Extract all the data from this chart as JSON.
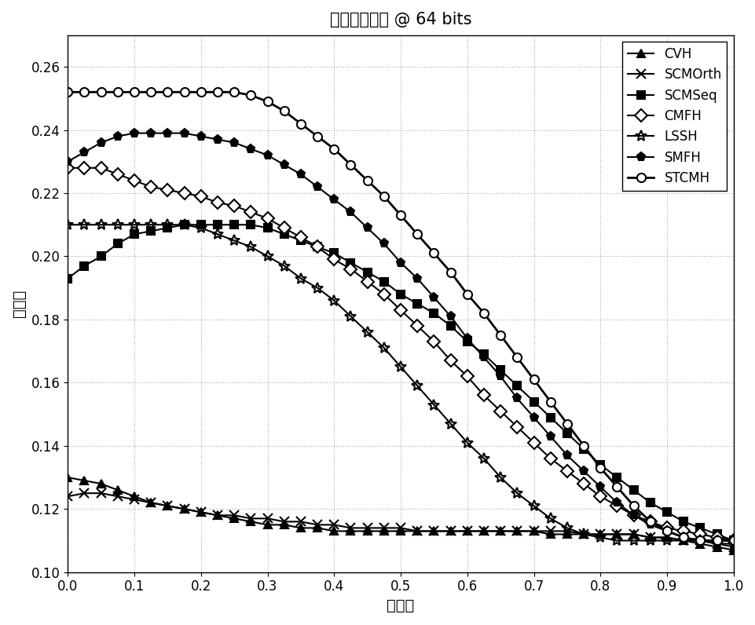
{
  "title": "图像检索文本 @ 64 bits",
  "xlabel": "召回率",
  "ylabel": "准确率",
  "xlim": [
    0,
    1
  ],
  "ylim": [
    0.1,
    0.27
  ],
  "yticks": [
    0.1,
    0.12,
    0.14,
    0.16,
    0.18,
    0.2,
    0.22,
    0.24,
    0.26
  ],
  "xticks": [
    0,
    0.1,
    0.2,
    0.3,
    0.4,
    0.5,
    0.6,
    0.7,
    0.8,
    0.9,
    1.0
  ],
  "series": [
    {
      "label": "CVH",
      "marker": "^",
      "marker_face": "black",
      "marker_edge": "black",
      "color": "#000000",
      "linewidth": 1.5,
      "markersize": 7,
      "x": [
        0.0,
        0.025,
        0.05,
        0.075,
        0.1,
        0.125,
        0.15,
        0.175,
        0.2,
        0.225,
        0.25,
        0.275,
        0.3,
        0.325,
        0.35,
        0.375,
        0.4,
        0.425,
        0.45,
        0.475,
        0.5,
        0.525,
        0.55,
        0.575,
        0.6,
        0.625,
        0.65,
        0.675,
        0.7,
        0.725,
        0.75,
        0.775,
        0.8,
        0.825,
        0.85,
        0.875,
        0.9,
        0.925,
        0.95,
        0.975,
        1.0
      ],
      "y": [
        0.13,
        0.129,
        0.128,
        0.126,
        0.124,
        0.122,
        0.121,
        0.12,
        0.119,
        0.118,
        0.117,
        0.116,
        0.115,
        0.115,
        0.114,
        0.114,
        0.113,
        0.113,
        0.113,
        0.113,
        0.113,
        0.113,
        0.113,
        0.113,
        0.113,
        0.113,
        0.113,
        0.113,
        0.113,
        0.112,
        0.112,
        0.112,
        0.112,
        0.112,
        0.112,
        0.111,
        0.111,
        0.11,
        0.109,
        0.108,
        0.107
      ]
    },
    {
      "label": "SCMOrth",
      "marker": "x",
      "marker_face": "black",
      "marker_edge": "black",
      "color": "#000000",
      "linewidth": 1.5,
      "markersize": 8,
      "x": [
        0.0,
        0.025,
        0.05,
        0.075,
        0.1,
        0.125,
        0.15,
        0.175,
        0.2,
        0.225,
        0.25,
        0.275,
        0.3,
        0.325,
        0.35,
        0.375,
        0.4,
        0.425,
        0.45,
        0.475,
        0.5,
        0.525,
        0.55,
        0.575,
        0.6,
        0.625,
        0.65,
        0.675,
        0.7,
        0.725,
        0.75,
        0.775,
        0.8,
        0.825,
        0.85,
        0.875,
        0.9,
        0.925,
        0.95,
        0.975,
        1.0
      ],
      "y": [
        0.124,
        0.125,
        0.125,
        0.124,
        0.123,
        0.122,
        0.121,
        0.12,
        0.119,
        0.118,
        0.118,
        0.117,
        0.117,
        0.116,
        0.116,
        0.115,
        0.115,
        0.114,
        0.114,
        0.114,
        0.114,
        0.113,
        0.113,
        0.113,
        0.113,
        0.113,
        0.113,
        0.113,
        0.113,
        0.113,
        0.113,
        0.112,
        0.112,
        0.112,
        0.112,
        0.111,
        0.111,
        0.11,
        0.11,
        0.109,
        0.108
      ]
    },
    {
      "label": "SCMSeq",
      "marker": "s",
      "marker_face": "black",
      "marker_edge": "black",
      "color": "#000000",
      "linewidth": 1.5,
      "markersize": 7,
      "x": [
        0.0,
        0.025,
        0.05,
        0.075,
        0.1,
        0.125,
        0.15,
        0.175,
        0.2,
        0.225,
        0.25,
        0.275,
        0.3,
        0.325,
        0.35,
        0.375,
        0.4,
        0.425,
        0.45,
        0.475,
        0.5,
        0.525,
        0.55,
        0.575,
        0.6,
        0.625,
        0.65,
        0.675,
        0.7,
        0.725,
        0.75,
        0.775,
        0.8,
        0.825,
        0.85,
        0.875,
        0.9,
        0.925,
        0.95,
        0.975,
        1.0
      ],
      "y": [
        0.193,
        0.197,
        0.2,
        0.204,
        0.207,
        0.208,
        0.209,
        0.21,
        0.21,
        0.21,
        0.21,
        0.21,
        0.209,
        0.207,
        0.205,
        0.203,
        0.201,
        0.198,
        0.195,
        0.192,
        0.188,
        0.185,
        0.182,
        0.178,
        0.173,
        0.169,
        0.164,
        0.159,
        0.154,
        0.149,
        0.144,
        0.139,
        0.134,
        0.13,
        0.126,
        0.122,
        0.119,
        0.116,
        0.114,
        0.112,
        0.11
      ]
    },
    {
      "label": "CMFH",
      "marker": "D",
      "marker_face": "white",
      "marker_edge": "black",
      "color": "#000000",
      "linewidth": 1.5,
      "markersize": 8,
      "x": [
        0.0,
        0.025,
        0.05,
        0.075,
        0.1,
        0.125,
        0.15,
        0.175,
        0.2,
        0.225,
        0.25,
        0.275,
        0.3,
        0.325,
        0.35,
        0.375,
        0.4,
        0.425,
        0.45,
        0.475,
        0.5,
        0.525,
        0.55,
        0.575,
        0.6,
        0.625,
        0.65,
        0.675,
        0.7,
        0.725,
        0.75,
        0.775,
        0.8,
        0.825,
        0.85,
        0.875,
        0.9,
        0.925,
        0.95,
        0.975,
        1.0
      ],
      "y": [
        0.228,
        0.228,
        0.228,
        0.226,
        0.224,
        0.222,
        0.221,
        0.22,
        0.219,
        0.217,
        0.216,
        0.214,
        0.212,
        0.209,
        0.206,
        0.203,
        0.199,
        0.196,
        0.192,
        0.188,
        0.183,
        0.178,
        0.173,
        0.167,
        0.162,
        0.156,
        0.151,
        0.146,
        0.141,
        0.136,
        0.132,
        0.128,
        0.124,
        0.121,
        0.118,
        0.116,
        0.114,
        0.113,
        0.112,
        0.111,
        0.11
      ]
    },
    {
      "label": "LSSH",
      "marker": "*",
      "marker_face": "none",
      "marker_edge": "black",
      "color": "#000000",
      "linewidth": 1.5,
      "markersize": 10,
      "x": [
        0.0,
        0.025,
        0.05,
        0.075,
        0.1,
        0.125,
        0.15,
        0.175,
        0.2,
        0.225,
        0.25,
        0.275,
        0.3,
        0.325,
        0.35,
        0.375,
        0.4,
        0.425,
        0.45,
        0.475,
        0.5,
        0.525,
        0.55,
        0.575,
        0.6,
        0.625,
        0.65,
        0.675,
        0.7,
        0.725,
        0.75,
        0.775,
        0.8,
        0.825,
        0.85,
        0.875,
        0.9,
        0.925,
        0.95,
        0.975,
        1.0
      ],
      "y": [
        0.21,
        0.21,
        0.21,
        0.21,
        0.21,
        0.21,
        0.21,
        0.21,
        0.209,
        0.207,
        0.205,
        0.203,
        0.2,
        0.197,
        0.193,
        0.19,
        0.186,
        0.181,
        0.176,
        0.171,
        0.165,
        0.159,
        0.153,
        0.147,
        0.141,
        0.136,
        0.13,
        0.125,
        0.121,
        0.117,
        0.114,
        0.112,
        0.111,
        0.11,
        0.11,
        0.11,
        0.11,
        0.11,
        0.11,
        0.109,
        0.109
      ]
    },
    {
      "label": "SMFH",
      "marker": "p",
      "marker_face": "black",
      "marker_edge": "black",
      "color": "#000000",
      "linewidth": 1.5,
      "markersize": 8,
      "x": [
        0.0,
        0.025,
        0.05,
        0.075,
        0.1,
        0.125,
        0.15,
        0.175,
        0.2,
        0.225,
        0.25,
        0.275,
        0.3,
        0.325,
        0.35,
        0.375,
        0.4,
        0.425,
        0.45,
        0.475,
        0.5,
        0.525,
        0.55,
        0.575,
        0.6,
        0.625,
        0.65,
        0.675,
        0.7,
        0.725,
        0.75,
        0.775,
        0.8,
        0.825,
        0.85,
        0.875,
        0.9,
        0.925,
        0.95,
        0.975,
        1.0
      ],
      "y": [
        0.23,
        0.233,
        0.236,
        0.238,
        0.239,
        0.239,
        0.239,
        0.239,
        0.238,
        0.237,
        0.236,
        0.234,
        0.232,
        0.229,
        0.226,
        0.222,
        0.218,
        0.214,
        0.209,
        0.204,
        0.198,
        0.193,
        0.187,
        0.181,
        0.174,
        0.168,
        0.162,
        0.155,
        0.149,
        0.143,
        0.137,
        0.132,
        0.127,
        0.122,
        0.118,
        0.115,
        0.113,
        0.111,
        0.11,
        0.11,
        0.11
      ]
    },
    {
      "label": "STCMH",
      "marker": "o",
      "marker_face": "white",
      "marker_edge": "black",
      "color": "#000000",
      "linewidth": 2.0,
      "markersize": 8,
      "x": [
        0.0,
        0.025,
        0.05,
        0.075,
        0.1,
        0.125,
        0.15,
        0.175,
        0.2,
        0.225,
        0.25,
        0.275,
        0.3,
        0.325,
        0.35,
        0.375,
        0.4,
        0.425,
        0.45,
        0.475,
        0.5,
        0.525,
        0.55,
        0.575,
        0.6,
        0.625,
        0.65,
        0.675,
        0.7,
        0.725,
        0.75,
        0.775,
        0.8,
        0.825,
        0.85,
        0.875,
        0.9,
        0.925,
        0.95,
        0.975,
        1.0
      ],
      "y": [
        0.252,
        0.252,
        0.252,
        0.252,
        0.252,
        0.252,
        0.252,
        0.252,
        0.252,
        0.252,
        0.252,
        0.251,
        0.249,
        0.246,
        0.242,
        0.238,
        0.234,
        0.229,
        0.224,
        0.219,
        0.213,
        0.207,
        0.201,
        0.195,
        0.188,
        0.182,
        0.175,
        0.168,
        0.161,
        0.154,
        0.147,
        0.14,
        0.133,
        0.127,
        0.121,
        0.116,
        0.113,
        0.111,
        0.11,
        0.11,
        0.11
      ]
    }
  ],
  "background_color": "#ffffff",
  "grid_color": "#aaaaaa",
  "title_fontsize": 15,
  "label_fontsize": 14,
  "tick_fontsize": 12,
  "legend_fontsize": 12
}
